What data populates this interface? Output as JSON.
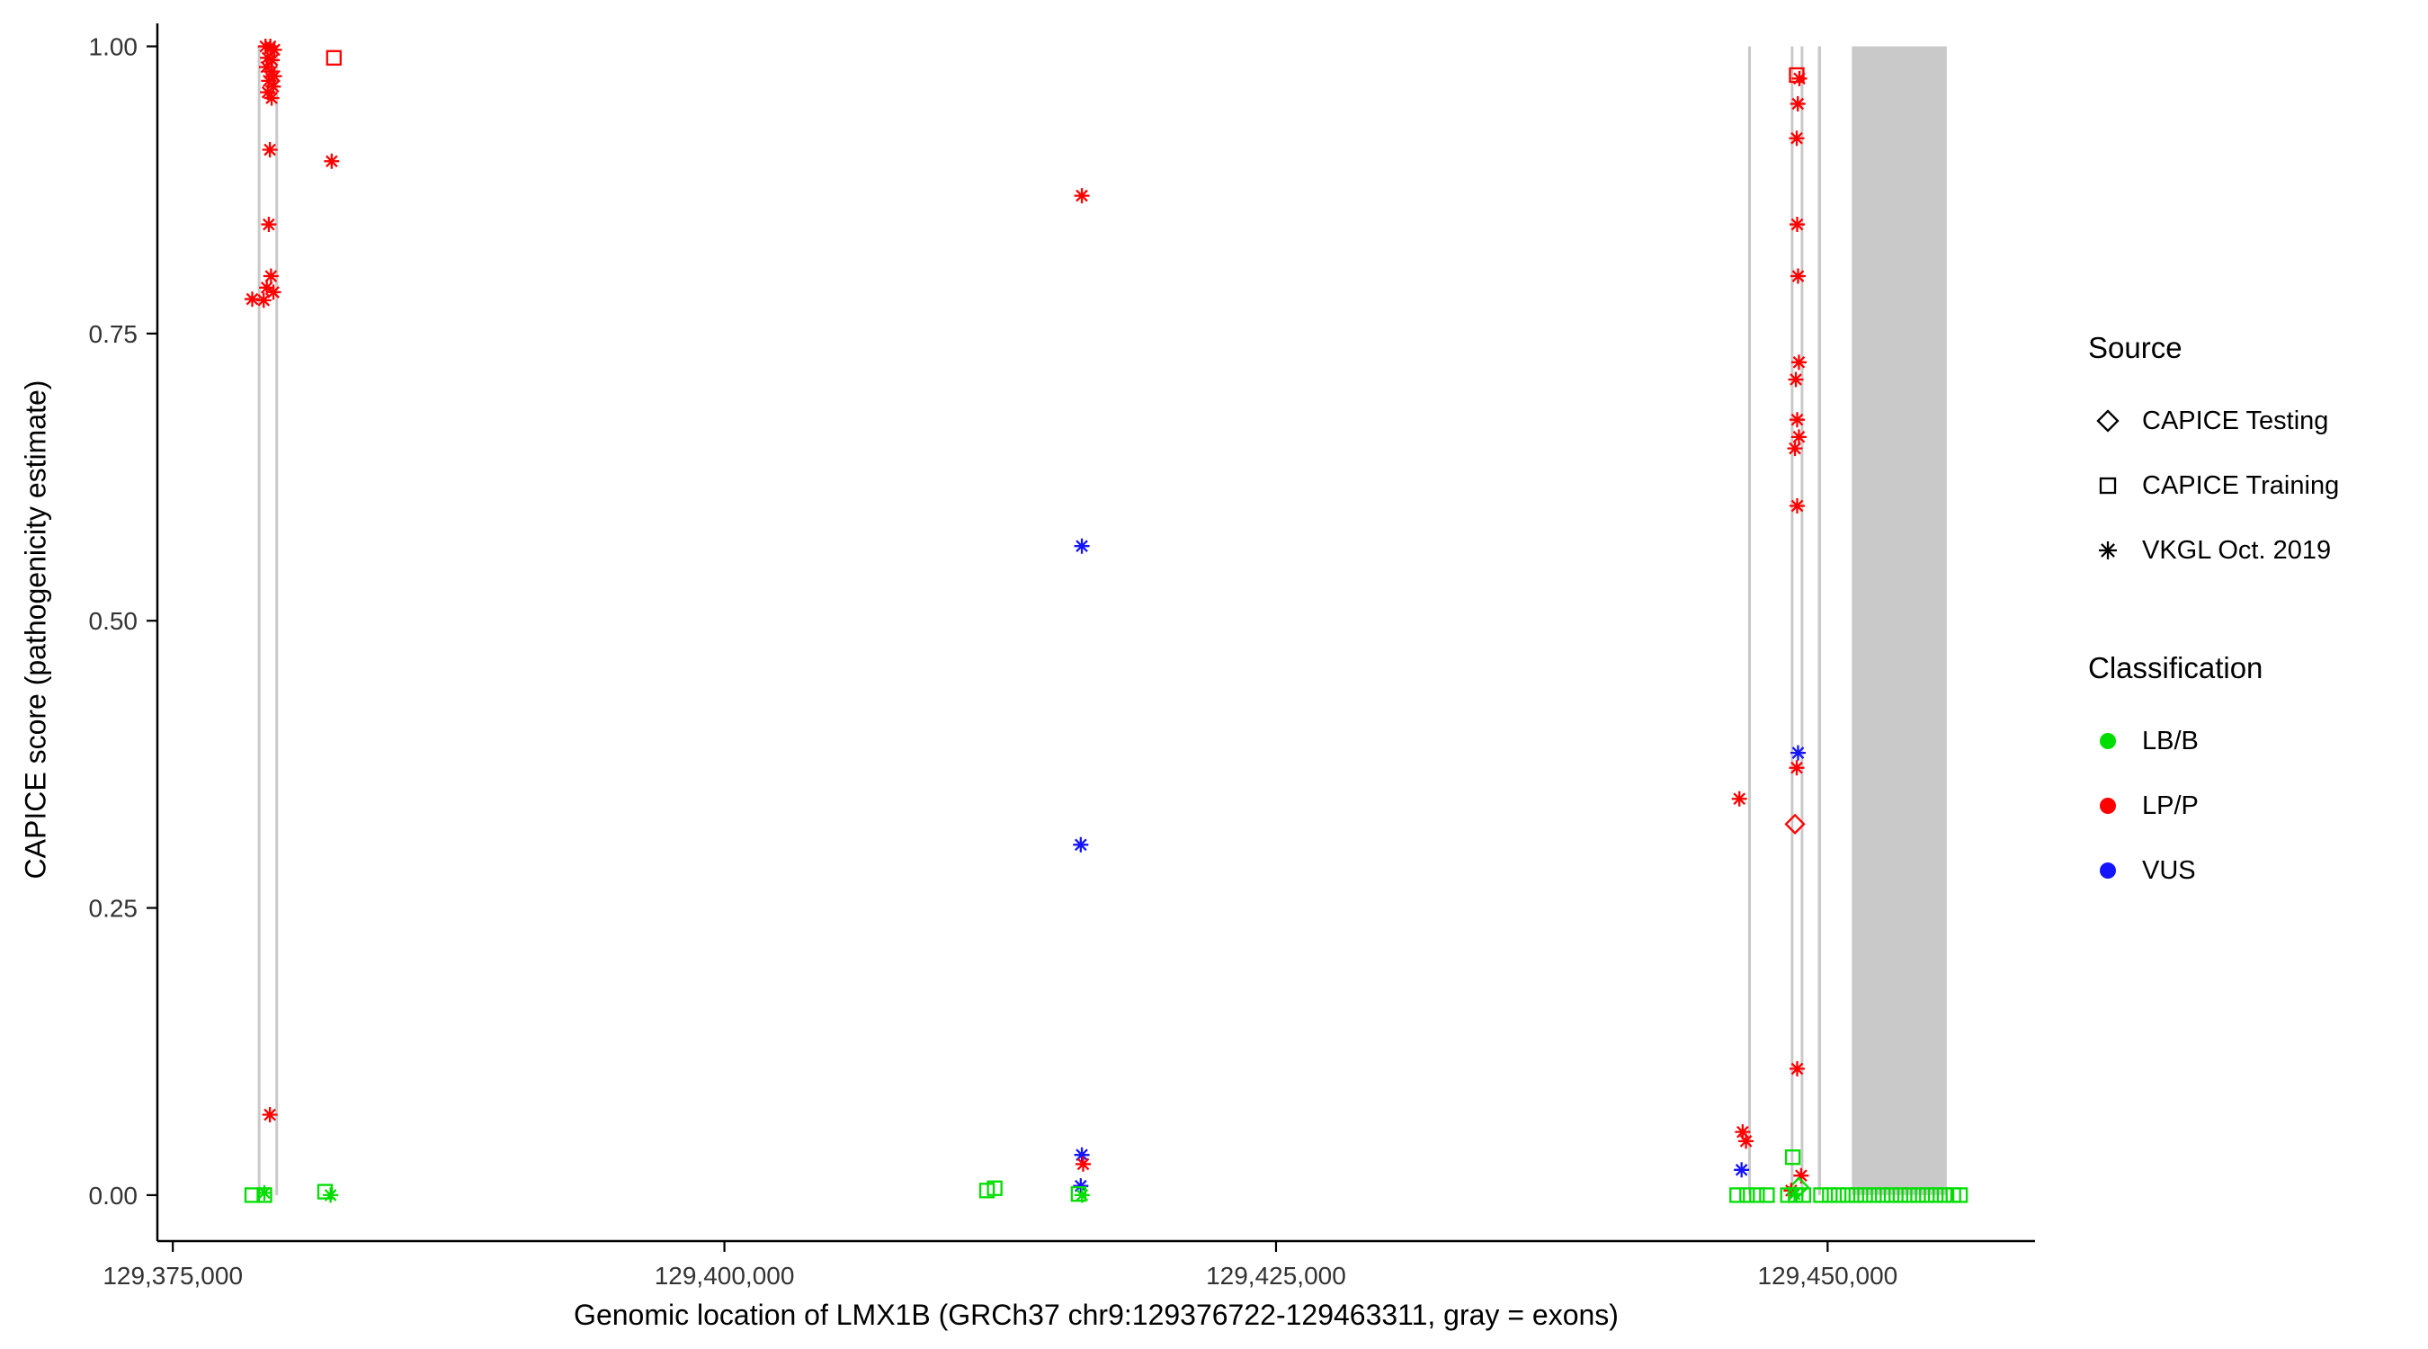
{
  "chart_data": {
    "type": "scatter",
    "title": "",
    "xlabel": "Genomic location of LMX1B (GRCh37 chr9:129376722-129463311, gray = exons)",
    "ylabel": "CAPICE score (pathogenicity estimate)",
    "xlim": [
      129374300,
      129459400
    ],
    "ylim": [
      -0.04,
      1.02
    ],
    "grid": false,
    "legend_position": "right",
    "exon_color": "#c9c9c9",
    "axis_color": "#000000",
    "tick_label_color": "#333333",
    "x_ticks": [
      {
        "value": 129375000,
        "label": "129,375,000"
      },
      {
        "value": 129400000,
        "label": "129,400,000"
      },
      {
        "value": 129425000,
        "label": "129,425,000"
      },
      {
        "value": 129450000,
        "label": "129,450,000"
      }
    ],
    "y_ticks": [
      {
        "value": 0.0,
        "label": "0.00"
      },
      {
        "value": 0.25,
        "label": "0.25"
      },
      {
        "value": 0.5,
        "label": "0.50"
      },
      {
        "value": 0.75,
        "label": "0.75"
      },
      {
        "value": 1.0,
        "label": "1.00"
      }
    ],
    "legend": {
      "source_title": "Source",
      "classification_title": "Classification"
    },
    "sources": [
      {
        "id": "testing",
        "label": "CAPICE Testing",
        "shape": "diamond"
      },
      {
        "id": "training",
        "label": "CAPICE Training",
        "shape": "square"
      },
      {
        "id": "vkgl",
        "label": "VKGL Oct. 2019",
        "shape": "asterisk"
      }
    ],
    "classes": [
      {
        "id": "LB/B",
        "label": "LB/B",
        "color": "#00dd00"
      },
      {
        "id": "LP/P",
        "label": "LP/P",
        "color": "#ff0000"
      },
      {
        "id": "VUS",
        "label": "VUS",
        "color": "#1414ff"
      }
    ],
    "exons": [
      {
        "start": 129378850,
        "end": 129378970
      },
      {
        "start": 129379650,
        "end": 129379770
      },
      {
        "start": 129446400,
        "end": 129446520
      },
      {
        "start": 129448330,
        "end": 129448450
      },
      {
        "start": 129448780,
        "end": 129448900
      },
      {
        "start": 129449560,
        "end": 129449700
      },
      {
        "start": 129451100,
        "end": 129455400
      }
    ],
    "points": [
      {
        "x": 129379200,
        "y": 1.0,
        "s": "vkgl",
        "c": "LP/P"
      },
      {
        "x": 129379420,
        "y": 1.0,
        "s": "vkgl",
        "c": "LP/P"
      },
      {
        "x": 129379600,
        "y": 0.997,
        "s": "vkgl",
        "c": "LP/P"
      },
      {
        "x": 129379300,
        "y": 0.99,
        "s": "vkgl",
        "c": "LP/P"
      },
      {
        "x": 129379500,
        "y": 0.988,
        "s": "vkgl",
        "c": "LP/P"
      },
      {
        "x": 129379250,
        "y": 0.982,
        "s": "vkgl",
        "c": "LP/P"
      },
      {
        "x": 129379460,
        "y": 0.978,
        "s": "vkgl",
        "c": "LP/P"
      },
      {
        "x": 129379600,
        "y": 0.974,
        "s": "vkgl",
        "c": "LP/P"
      },
      {
        "x": 129379350,
        "y": 0.97,
        "s": "vkgl",
        "c": "LP/P"
      },
      {
        "x": 129379550,
        "y": 0.965,
        "s": "vkgl",
        "c": "LP/P"
      },
      {
        "x": 129379300,
        "y": 0.96,
        "s": "vkgl",
        "c": "LP/P"
      },
      {
        "x": 129379480,
        "y": 0.955,
        "s": "vkgl",
        "c": "LP/P"
      },
      {
        "x": 129379400,
        "y": 0.91,
        "s": "vkgl",
        "c": "LP/P"
      },
      {
        "x": 129379350,
        "y": 0.845,
        "s": "vkgl",
        "c": "LP/P"
      },
      {
        "x": 129379450,
        "y": 0.8,
        "s": "vkgl",
        "c": "LP/P"
      },
      {
        "x": 129379260,
        "y": 0.79,
        "s": "vkgl",
        "c": "LP/P"
      },
      {
        "x": 129379560,
        "y": 0.786,
        "s": "vkgl",
        "c": "LP/P"
      },
      {
        "x": 129378600,
        "y": 0.78,
        "s": "vkgl",
        "c": "LP/P"
      },
      {
        "x": 129379120,
        "y": 0.779,
        "s": "vkgl",
        "c": "LP/P"
      },
      {
        "x": 129379400,
        "y": 0.07,
        "s": "vkgl",
        "c": "LP/P"
      },
      {
        "x": 129378600,
        "y": 0.0,
        "s": "training",
        "c": "LB/B"
      },
      {
        "x": 129379150,
        "y": 0.0,
        "s": "training",
        "c": "LB/B"
      },
      {
        "x": 129379150,
        "y": 0.002,
        "s": "vkgl",
        "c": "LB/B"
      },
      {
        "x": 129382300,
        "y": 0.99,
        "s": "training",
        "c": "LP/P"
      },
      {
        "x": 129382200,
        "y": 0.9,
        "s": "vkgl",
        "c": "LP/P"
      },
      {
        "x": 129381900,
        "y": 0.003,
        "s": "training",
        "c": "LB/B"
      },
      {
        "x": 129382150,
        "y": 0.0,
        "s": "vkgl",
        "c": "LB/B"
      },
      {
        "x": 129411900,
        "y": 0.004,
        "s": "training",
        "c": "LB/B"
      },
      {
        "x": 129412250,
        "y": 0.006,
        "s": "training",
        "c": "LB/B"
      },
      {
        "x": 129416200,
        "y": 0.87,
        "s": "vkgl",
        "c": "LP/P"
      },
      {
        "x": 129416200,
        "y": 0.565,
        "s": "vkgl",
        "c": "VUS"
      },
      {
        "x": 129416150,
        "y": 0.305,
        "s": "vkgl",
        "c": "VUS"
      },
      {
        "x": 129416200,
        "y": 0.035,
        "s": "vkgl",
        "c": "VUS"
      },
      {
        "x": 129416260,
        "y": 0.027,
        "s": "vkgl",
        "c": "LP/P"
      },
      {
        "x": 129416150,
        "y": 0.008,
        "s": "vkgl",
        "c": "VUS"
      },
      {
        "x": 129416210,
        "y": 0.0,
        "s": "vkgl",
        "c": "LB/B"
      },
      {
        "x": 129416050,
        "y": 0.001,
        "s": "training",
        "c": "LB/B"
      },
      {
        "x": 129446000,
        "y": 0.345,
        "s": "vkgl",
        "c": "LP/P"
      },
      {
        "x": 129446150,
        "y": 0.055,
        "s": "vkgl",
        "c": "LP/P"
      },
      {
        "x": 129446300,
        "y": 0.047,
        "s": "vkgl",
        "c": "LP/P"
      },
      {
        "x": 129446100,
        "y": 0.022,
        "s": "vkgl",
        "c": "VUS"
      },
      {
        "x": 129445900,
        "y": 0.0,
        "s": "training",
        "c": "LB/B"
      },
      {
        "x": 129446350,
        "y": 0.0,
        "s": "training",
        "c": "LB/B"
      },
      {
        "x": 129446800,
        "y": 0.0,
        "s": "training",
        "c": "LB/B"
      },
      {
        "x": 129447250,
        "y": 0.0,
        "s": "training",
        "c": "LB/B"
      },
      {
        "x": 129448600,
        "y": 0.975,
        "s": "training",
        "c": "LP/P"
      },
      {
        "x": 129448720,
        "y": 0.972,
        "s": "vkgl",
        "c": "LP/P"
      },
      {
        "x": 129448650,
        "y": 0.95,
        "s": "vkgl",
        "c": "LP/P"
      },
      {
        "x": 129448600,
        "y": 0.92,
        "s": "vkgl",
        "c": "LP/P"
      },
      {
        "x": 129448620,
        "y": 0.845,
        "s": "vkgl",
        "c": "LP/P"
      },
      {
        "x": 129448660,
        "y": 0.8,
        "s": "vkgl",
        "c": "LP/P"
      },
      {
        "x": 129448700,
        "y": 0.725,
        "s": "vkgl",
        "c": "LP/P"
      },
      {
        "x": 129448560,
        "y": 0.71,
        "s": "vkgl",
        "c": "LP/P"
      },
      {
        "x": 129448620,
        "y": 0.675,
        "s": "vkgl",
        "c": "LP/P"
      },
      {
        "x": 129448700,
        "y": 0.66,
        "s": "vkgl",
        "c": "LP/P"
      },
      {
        "x": 129448520,
        "y": 0.65,
        "s": "vkgl",
        "c": "LP/P"
      },
      {
        "x": 129448620,
        "y": 0.6,
        "s": "vkgl",
        "c": "LP/P"
      },
      {
        "x": 129448660,
        "y": 0.385,
        "s": "vkgl",
        "c": "VUS"
      },
      {
        "x": 129448600,
        "y": 0.372,
        "s": "vkgl",
        "c": "LP/P"
      },
      {
        "x": 129448520,
        "y": 0.323,
        "s": "testing",
        "c": "LP/P"
      },
      {
        "x": 129448620,
        "y": 0.11,
        "s": "vkgl",
        "c": "LP/P"
      },
      {
        "x": 129448420,
        "y": 0.033,
        "s": "training",
        "c": "LB/B"
      },
      {
        "x": 129448800,
        "y": 0.017,
        "s": "vkgl",
        "c": "LP/P"
      },
      {
        "x": 129448700,
        "y": 0.007,
        "s": "testing",
        "c": "LB/B"
      },
      {
        "x": 129448350,
        "y": 0.004,
        "s": "vkgl",
        "c": "LP/P"
      },
      {
        "x": 129448200,
        "y": 0.0,
        "s": "training",
        "c": "LB/B"
      },
      {
        "x": 129448550,
        "y": 0.0,
        "s": "training",
        "c": "LB/B"
      },
      {
        "x": 129448900,
        "y": 0.0,
        "s": "training",
        "c": "LB/B"
      },
      {
        "x": 129448500,
        "y": 0.001,
        "s": "vkgl",
        "c": "LB/B"
      },
      {
        "x": 129449700,
        "y": 0.0,
        "s": "training",
        "c": "LB/B"
      },
      {
        "x": 129450100,
        "y": 0.0,
        "s": "training",
        "c": "LB/B"
      },
      {
        "x": 129450500,
        "y": 0.0,
        "s": "training",
        "c": "LB/B"
      },
      {
        "x": 129450900,
        "y": 0.0,
        "s": "training",
        "c": "LB/B"
      },
      {
        "x": 129451300,
        "y": 0.0,
        "s": "training",
        "c": "LB/B"
      },
      {
        "x": 129451700,
        "y": 0.0,
        "s": "training",
        "c": "LB/B"
      },
      {
        "x": 129452100,
        "y": 0.0,
        "s": "training",
        "c": "LB/B"
      },
      {
        "x": 129452500,
        "y": 0.0,
        "s": "training",
        "c": "LB/B"
      },
      {
        "x": 129452900,
        "y": 0.0,
        "s": "training",
        "c": "LB/B"
      },
      {
        "x": 129453300,
        "y": 0.0,
        "s": "training",
        "c": "LB/B"
      },
      {
        "x": 129453700,
        "y": 0.0,
        "s": "training",
        "c": "LB/B"
      },
      {
        "x": 129454100,
        "y": 0.0,
        "s": "training",
        "c": "LB/B"
      },
      {
        "x": 129454500,
        "y": 0.0,
        "s": "training",
        "c": "LB/B"
      },
      {
        "x": 129454900,
        "y": 0.0,
        "s": "training",
        "c": "LB/B"
      },
      {
        "x": 129455300,
        "y": 0.0,
        "s": "training",
        "c": "LB/B"
      },
      {
        "x": 129455700,
        "y": 0.0,
        "s": "training",
        "c": "LB/B"
      },
      {
        "x": 129456000,
        "y": 0.0,
        "s": "training",
        "c": "LB/B"
      }
    ]
  }
}
